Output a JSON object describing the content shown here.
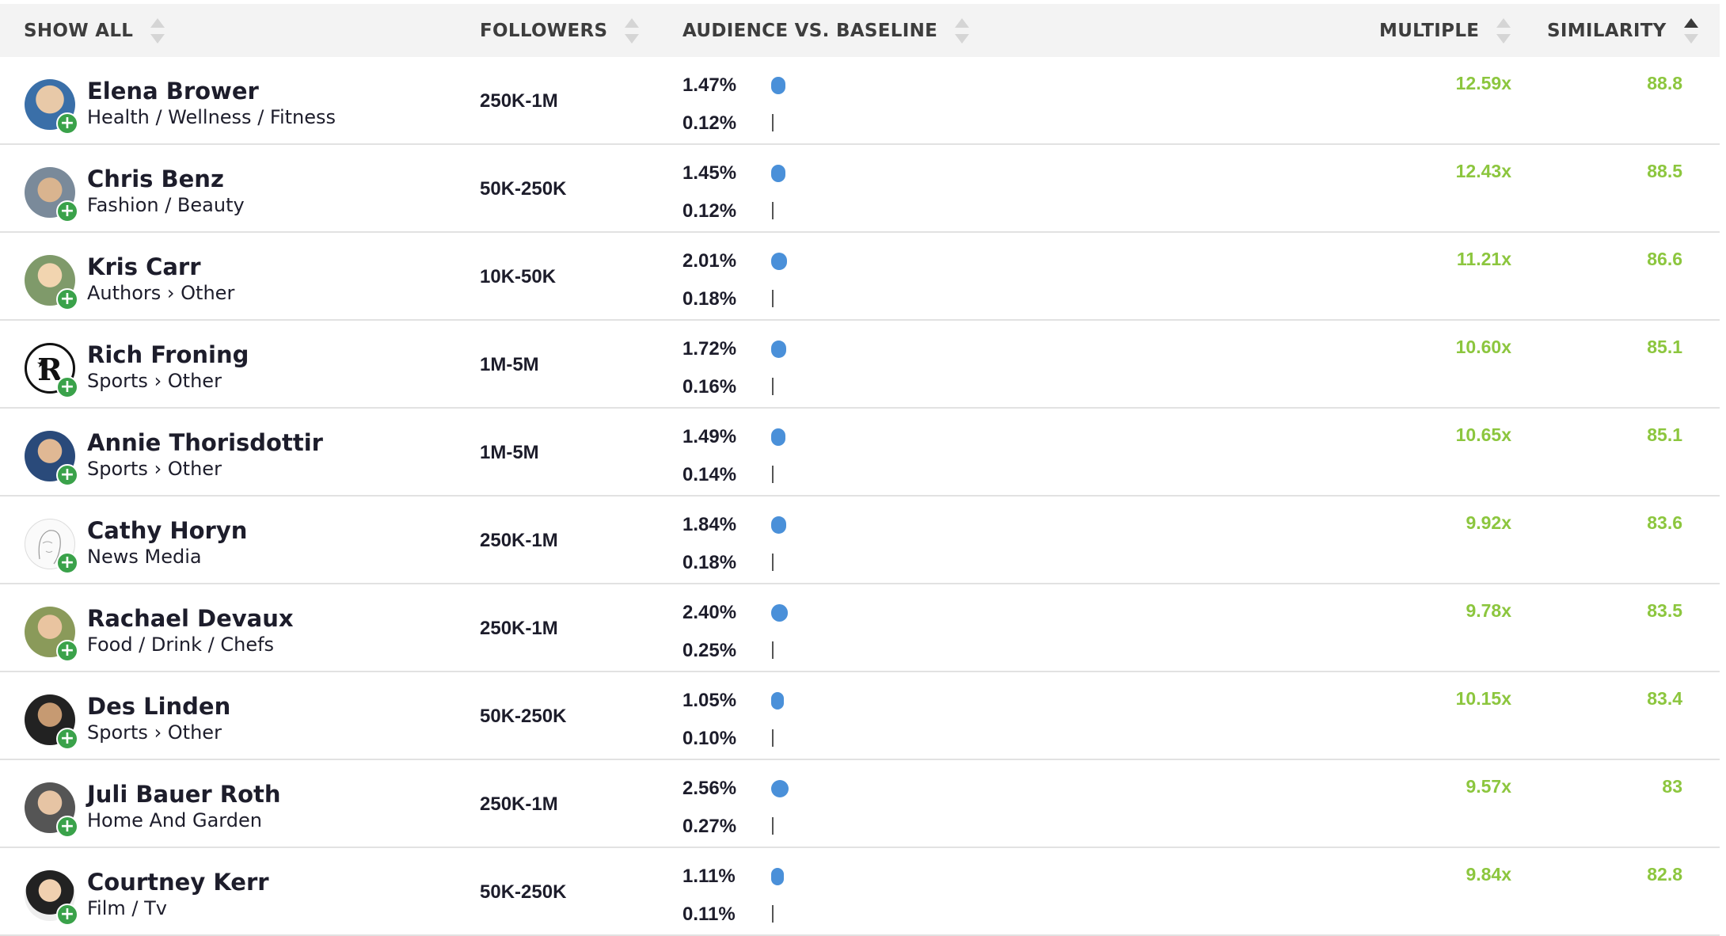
{
  "header": {
    "show_all": "SHOW ALL",
    "followers": "FOLLOWERS",
    "audience": "AUDIENCE VS. BASELINE",
    "multiple": "MULTIPLE",
    "similarity": "SIMILARITY",
    "active_sort": "similarity"
  },
  "colors": {
    "bar": "#4a90d9",
    "metric": "#8cc63e",
    "add": "#3aa24a"
  },
  "rows": [
    {
      "name": "Elena Brower",
      "category": "Health / Wellness / Fitness",
      "followers": "250K-1M",
      "audience": "1.47%",
      "audience_value": 1.47,
      "baseline": "0.12%",
      "multiple": "12.59x",
      "similarity": "88.8",
      "avatar_icon": "avatar-photo-icon"
    },
    {
      "name": "Chris Benz",
      "category": "Fashion / Beauty",
      "followers": "50K-250K",
      "audience": "1.45%",
      "audience_value": 1.45,
      "baseline": "0.12%",
      "multiple": "12.43x",
      "similarity": "88.5",
      "avatar_icon": "avatar-photo-icon"
    },
    {
      "name": "Kris Carr",
      "category": "Authors › Other",
      "followers": "10K-50K",
      "audience": "2.01%",
      "audience_value": 2.01,
      "baseline": "0.18%",
      "multiple": "11.21x",
      "similarity": "86.6",
      "avatar_icon": "avatar-photo-icon"
    },
    {
      "name": "Rich Froning",
      "category": "Sports › Other",
      "followers": "1M-5M",
      "audience": "1.72%",
      "audience_value": 1.72,
      "baseline": "0.16%",
      "multiple": "10.60x",
      "similarity": "85.1",
      "avatar_icon": "avatar-logo-icon"
    },
    {
      "name": "Annie Thorisdottir",
      "category": "Sports › Other",
      "followers": "1M-5M",
      "audience": "1.49%",
      "audience_value": 1.49,
      "baseline": "0.14%",
      "multiple": "10.65x",
      "similarity": "85.1",
      "avatar_icon": "avatar-photo-icon"
    },
    {
      "name": "Cathy Horyn",
      "category": "News Media",
      "followers": "250K-1M",
      "audience": "1.84%",
      "audience_value": 1.84,
      "baseline": "0.18%",
      "multiple": "9.92x",
      "similarity": "83.6",
      "avatar_icon": "avatar-sketch-icon"
    },
    {
      "name": "Rachael Devaux",
      "category": "Food / Drink / Chefs",
      "followers": "250K-1M",
      "audience": "2.40%",
      "audience_value": 2.4,
      "baseline": "0.25%",
      "multiple": "9.78x",
      "similarity": "83.5",
      "avatar_icon": "avatar-photo-icon"
    },
    {
      "name": "Des Linden",
      "category": "Sports › Other",
      "followers": "50K-250K",
      "audience": "1.05%",
      "audience_value": 1.05,
      "baseline": "0.10%",
      "multiple": "10.15x",
      "similarity": "83.4",
      "avatar_icon": "avatar-photo-icon"
    },
    {
      "name": "Juli Bauer Roth",
      "category": "Home And Garden",
      "followers": "250K-1M",
      "audience": "2.56%",
      "audience_value": 2.56,
      "baseline": "0.27%",
      "multiple": "9.57x",
      "similarity": "83",
      "avatar_icon": "avatar-photo-icon"
    },
    {
      "name": "Courtney Kerr",
      "category": "Film / Tv",
      "followers": "50K-250K",
      "audience": "1.11%",
      "audience_value": 1.11,
      "baseline": "0.11%",
      "multiple": "9.84x",
      "similarity": "82.8",
      "avatar_icon": "avatar-photo-icon"
    }
  ]
}
